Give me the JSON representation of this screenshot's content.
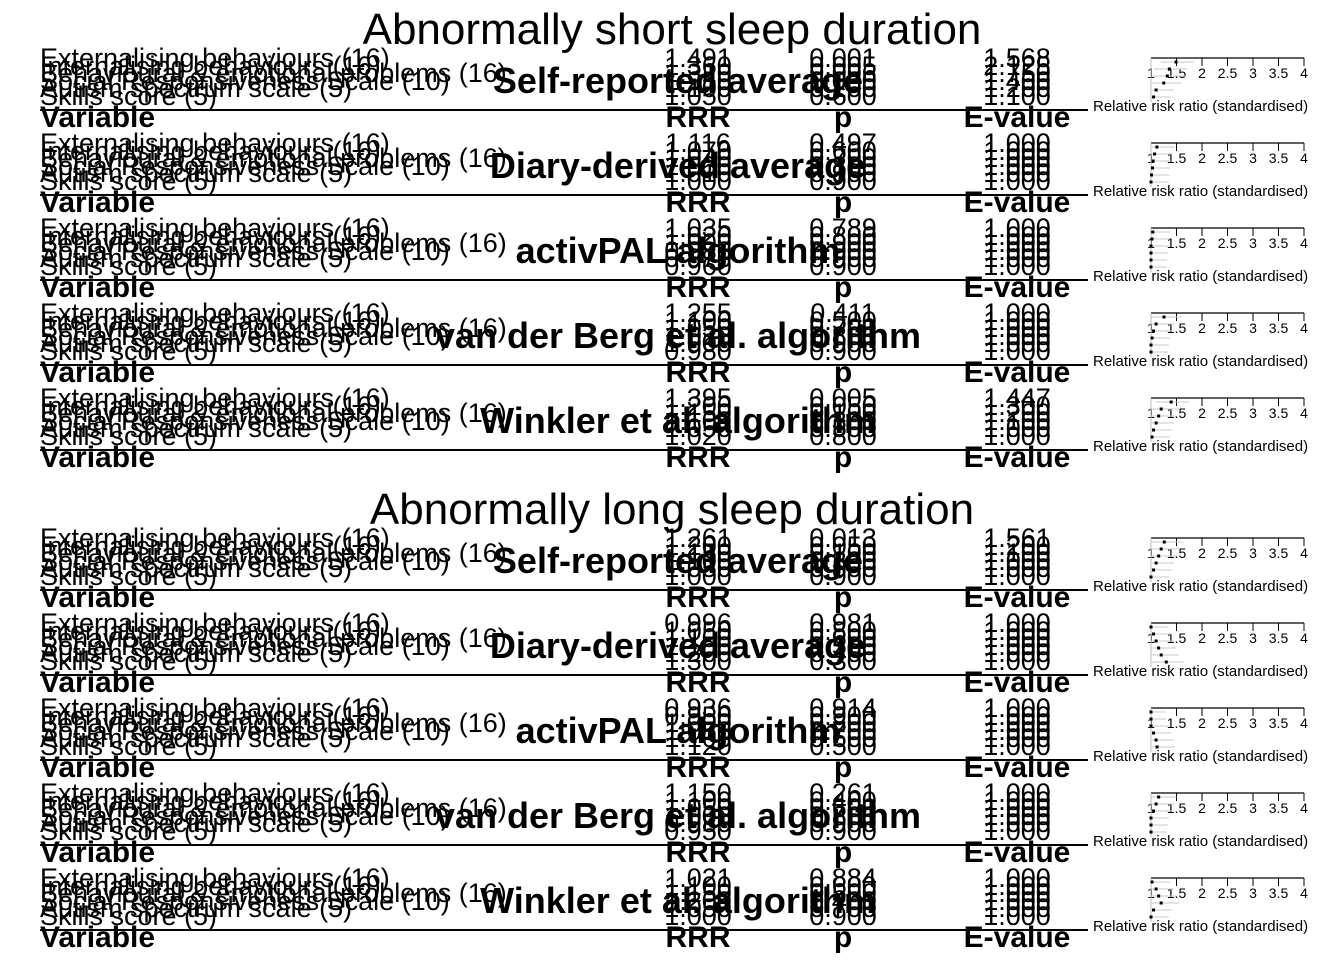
{
  "chart_data": {
    "type": "table",
    "forest_axis": {
      "label": "Relative risk ratio (standardised)",
      "ticks": [
        1,
        1.5,
        2,
        2.5,
        3,
        3.5,
        4
      ],
      "tick_labels": [
        "1",
        "1.5",
        "2",
        "2.5",
        "3",
        "3.5",
        "4"
      ],
      "range": [
        1,
        4
      ]
    },
    "columns": [
      "Variable",
      "RRR",
      "p",
      "E-value"
    ],
    "variables": [
      "Externalising behaviours (16)",
      "Internalising behaviours (16)",
      "Behavioural & emotional problems (16)",
      "Social Responsiveness Scale (10)",
      "Autism spectrum scale (5)",
      "Skills score (5)"
    ],
    "sections": [
      {
        "title": "Abnormally short sleep duration",
        "panels": [
          {
            "title": "Self-reported average",
            "rrr": [
              1.491,
              1.36,
              1.32,
              1.25,
              1.1,
              1.05
            ],
            "p": [
              0.001,
              0.005,
              0.006,
              0.03,
              0.2,
              0.6
            ],
            "e": [
              1.568,
              2.125,
              1.75,
              1.4,
              1.2,
              1.1
            ]
          },
          {
            "title": "Diary-derived average",
            "rrr": [
              1.116,
              1.07,
              1.04,
              1.03,
              1.01,
              1.0
            ],
            "p": [
              0.497,
              0.6,
              0.7,
              0.8,
              0.9,
              0.9
            ],
            "e": [
              1.0,
              1.0,
              1.0,
              1.0,
              1.0,
              1.0
            ]
          },
          {
            "title": "activPAL algorithm",
            "rrr": [
              1.035,
              1.02,
              1.0,
              0.98,
              0.97,
              0.96
            ],
            "p": [
              0.789,
              0.8,
              0.9,
              0.9,
              0.9,
              0.9
            ],
            "e": [
              1.0,
              1.0,
              1.0,
              1.0,
              1.0,
              1.0
            ]
          },
          {
            "title": "van der Berg et al. algorithm",
            "rrr": [
              1.255,
              1.1,
              1.05,
              1.02,
              1.0,
              0.98
            ],
            "p": [
              0.411,
              0.5,
              0.7,
              0.8,
              0.9,
              0.9
            ],
            "e": [
              1.0,
              1.0,
              1.0,
              1.0,
              1.0,
              1.0
            ]
          },
          {
            "title": "Winkler et al. algorithm",
            "rrr": [
              1.395,
              1.2,
              1.15,
              1.1,
              1.05,
              1.02
            ],
            "p": [
              0.005,
              0.05,
              0.1,
              0.3,
              0.5,
              0.8
            ],
            "e": [
              1.447,
              1.3,
              1.2,
              1.1,
              1.0,
              1.0
            ]
          }
        ]
      },
      {
        "title": "Abnormally long sleep duration",
        "panels": [
          {
            "title": "Self-reported average",
            "rrr": [
              1.261,
              1.2,
              1.15,
              1.1,
              1.05,
              1.0
            ],
            "p": [
              0.013,
              0.05,
              0.1,
              0.3,
              0.5,
              0.9
            ],
            "e": [
              1.561,
              1.2,
              1.1,
              1.0,
              1.0,
              1.0
            ]
          },
          {
            "title": "Diary-derived average",
            "rrr": [
              0.996,
              1.05,
              1.1,
              1.15,
              1.2,
              1.3
            ],
            "p": [
              0.981,
              0.8,
              0.6,
              0.5,
              0.4,
              0.3
            ],
            "e": [
              1.0,
              1.0,
              1.0,
              1.0,
              1.0,
              1.0
            ]
          },
          {
            "title": "activPAL algorithm",
            "rrr": [
              0.936,
              0.95,
              1.0,
              1.05,
              1.1,
              1.12
            ],
            "p": [
              0.914,
              0.9,
              0.8,
              0.7,
              0.6,
              0.5
            ],
            "e": [
              1.0,
              1.0,
              1.0,
              1.0,
              1.0,
              1.0
            ]
          },
          {
            "title": "van der Berg et al. algorithm",
            "rrr": [
              1.15,
              1.1,
              1.05,
              1.0,
              0.98,
              0.95
            ],
            "p": [
              0.261,
              0.4,
              0.6,
              0.8,
              0.9,
              0.9
            ],
            "e": [
              1.0,
              1.0,
              1.0,
              1.0,
              1.0,
              1.0
            ]
          },
          {
            "title": "Winkler et al. algorithm",
            "rrr": [
              1.021,
              1.1,
              1.15,
              1.2,
              1.05,
              1.0
            ],
            "p": [
              0.884,
              0.6,
              0.5,
              0.4,
              0.7,
              0.9
            ],
            "e": [
              1.0,
              1.0,
              1.0,
              1.0,
              1.0,
              1.0
            ]
          }
        ]
      }
    ]
  }
}
